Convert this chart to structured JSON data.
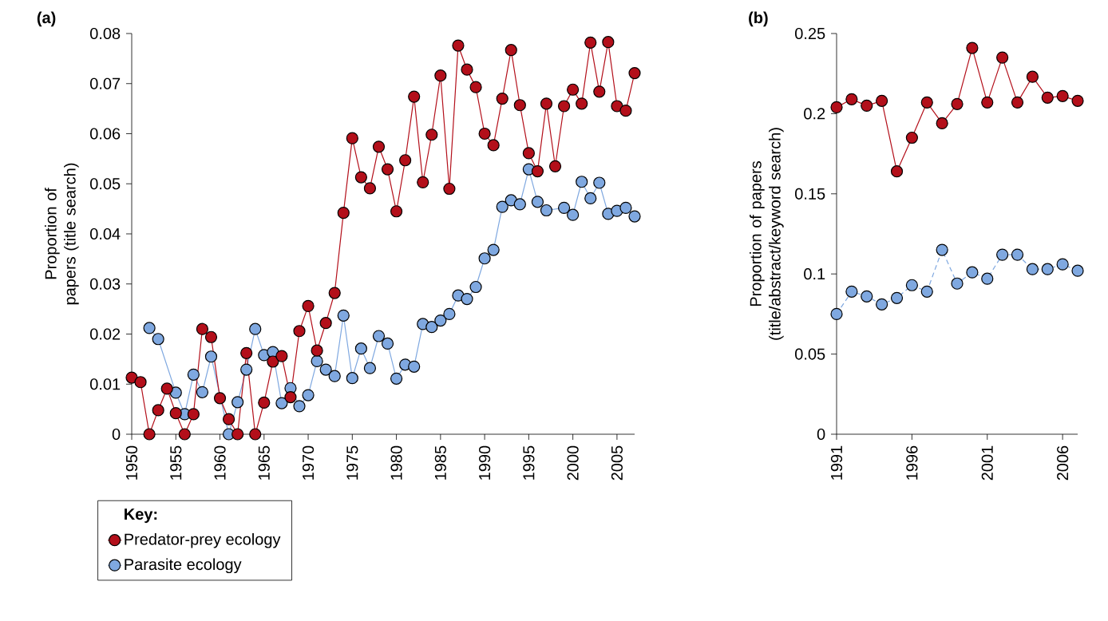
{
  "chart_data": [
    {
      "type": "line",
      "title": "(a)",
      "ylabel": "Proportion of papers (title search)",
      "legend_title": "Key:",
      "legend": "bottom",
      "marker": "circle",
      "x": [
        1950,
        1951,
        1952,
        1953,
        1954,
        1955,
        1956,
        1957,
        1958,
        1959,
        1960,
        1961,
        1962,
        1963,
        1964,
        1965,
        1966,
        1967,
        1968,
        1969,
        1970,
        1971,
        1972,
        1973,
        1974,
        1975,
        1976,
        1977,
        1978,
        1979,
        1980,
        1981,
        1982,
        1983,
        1984,
        1985,
        1986,
        1987,
        1988,
        1989,
        1990,
        1991,
        1992,
        1993,
        1994,
        1995,
        1996,
        1997,
        1998,
        1999,
        2000,
        2001,
        2002,
        2003,
        2004,
        2005,
        2006,
        2007
      ],
      "xlim": [
        1950,
        2007
      ],
      "xticks": [
        1950,
        1955,
        1960,
        1965,
        1970,
        1975,
        1980,
        1985,
        1990,
        1995,
        2000,
        2005
      ],
      "ylim": [
        0,
        0.08
      ],
      "yticks": [
        0,
        0.01,
        0.02,
        0.03,
        0.04,
        0.05,
        0.06,
        0.07,
        0.08
      ],
      "series": [
        {
          "name": "Predator-prey ecology",
          "color": "#b30f1a",
          "values": [
            0.0113,
            0.0104,
            0,
            0.0048,
            0.0091,
            0.0042,
            0,
            0.004,
            0.021,
            0.0194,
            0.0072,
            0.003,
            0,
            0.0162,
            0,
            0.0063,
            0.0145,
            0.0156,
            0.0074,
            0.0206,
            0.0256,
            0.0167,
            0.0222,
            0.0282,
            0.0442,
            0.0591,
            0.0513,
            0.0491,
            0.0574,
            0.0529,
            0.0445,
            0.0547,
            0.0674,
            0.0503,
            0.0598,
            0.0716,
            0.049,
            0.0776,
            0.0728,
            0.0693,
            0.06,
            0.0577,
            0.067,
            0.0767,
            0.0657,
            0.0561,
            0.0525,
            0.066,
            0.0535,
            0.0655,
            0.0688,
            0.066,
            0.0782,
            0.0684,
            0.0783,
            0.0655,
            0.0646,
            0.0721
          ]
        },
        {
          "name": "Parasite ecology",
          "color": "#7fa8e0",
          "values": [
            null,
            null,
            0.0212,
            0.019,
            null,
            0.0083,
            0.004,
            0.0119,
            0.0084,
            0.0155,
            null,
            0,
            0.0064,
            0.0129,
            0.021,
            0.0158,
            0.0164,
            0.0062,
            0.0092,
            0.0056,
            0.0078,
            0.0146,
            0.0129,
            0.0116,
            0.0237,
            0.0112,
            0.0171,
            0.0132,
            0.0196,
            0.0181,
            0.0111,
            0.0139,
            0.0135,
            0.022,
            0.0214,
            0.0227,
            0.024,
            0.0277,
            0.027,
            0.0294,
            0.0351,
            0.0368,
            0.0454,
            0.0467,
            0.0459,
            0.0529,
            0.0464,
            0.0447,
            null,
            0.0452,
            0.0438,
            0.0504,
            0.0471,
            0.0502,
            0.044,
            0.0446,
            0.0452,
            0.0435
          ]
        }
      ]
    },
    {
      "type": "line",
      "title": "(b)",
      "ylabel": "Proportion of papers (title/abstract/keyword search)",
      "marker": "circle",
      "x": [
        1991,
        1992,
        1993,
        1994,
        1995,
        1996,
        1997,
        1998,
        1999,
        2000,
        2001,
        2002,
        2003,
        2004,
        2005,
        2006,
        2007
      ],
      "xlim": [
        1991,
        2007
      ],
      "xticks": [
        1991,
        1996,
        2001,
        2006
      ],
      "ylim": [
        0,
        0.25
      ],
      "yticks": [
        0,
        0.05,
        0.1,
        0.15,
        0.2,
        0.25
      ],
      "series": [
        {
          "color": "#b30f1a",
          "line_style": "solid",
          "values": [
            0.204,
            0.209,
            0.205,
            0.208,
            0.164,
            0.185,
            0.207,
            0.194,
            0.206,
            0.241,
            0.207,
            0.235,
            0.207,
            0.223,
            0.21,
            0.211,
            0.208
          ]
        },
        {
          "color": "#7fa8e0",
          "line_style": "dashed",
          "values": [
            0.075,
            0.089,
            0.086,
            0.081,
            0.085,
            0.093,
            0.089,
            0.115,
            0.094,
            0.101,
            0.097,
            0.112,
            0.112,
            0.103,
            0.103,
            0.106,
            0.102
          ]
        }
      ]
    }
  ]
}
